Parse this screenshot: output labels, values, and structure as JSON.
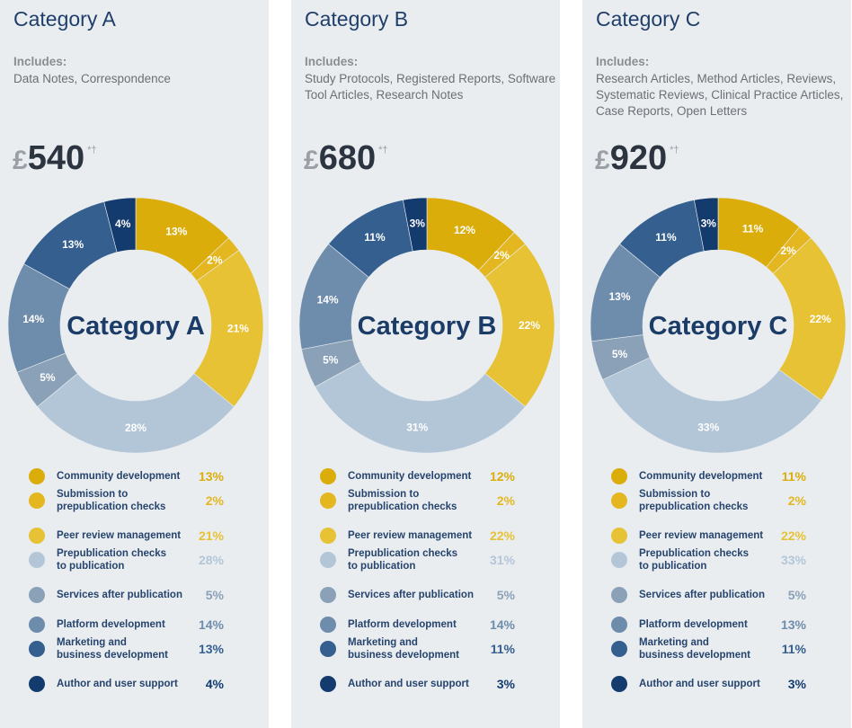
{
  "colors": {
    "community": "#dbad0b",
    "submission": "#e4b721",
    "peer": "#e6c234",
    "prepub": "#b3c6d8",
    "services": "#8aa1b8",
    "platform": "#6e8cab",
    "marketing": "#345f8f",
    "author": "#143b6e"
  },
  "legend_labels": [
    "Community development",
    "Submission to\nprepublication checks",
    "Peer review management",
    "Prepublication checks\nto publication",
    "Services after publication",
    "Platform development",
    "Marketing and\nbusiness development",
    "Author and user support"
  ],
  "panels": [
    {
      "title": "Category A",
      "includes_label": "Includes:",
      "includes_text": "Data Notes, Correspondence",
      "price_currency": "£",
      "price_amount": "540",
      "price_marks": "*†",
      "center_label": "Category A"
    },
    {
      "title": "Category B",
      "includes_label": "Includes:",
      "includes_text": "Study Protocols, Registered Reports, Software Tool Articles, Research Notes",
      "price_currency": "£",
      "price_amount": "680",
      "price_marks": "*†",
      "center_label": "Category B"
    },
    {
      "title": "Category C",
      "includes_label": "Includes:",
      "includes_text": "Research Articles, Method Articles, Reviews, Systematic Reviews, Clinical Practice Articles, Case Reports, Open Letters",
      "price_currency": "£",
      "price_amount": "920",
      "price_marks": "*†",
      "center_label": "Category C"
    }
  ],
  "chart_data": [
    {
      "type": "pie",
      "title": "Category A",
      "categories": [
        "Community development",
        "Submission to prepublication checks",
        "Peer review management",
        "Prepublication checks to publication",
        "Services after publication",
        "Platform development",
        "Marketing and business development",
        "Author and user support"
      ],
      "values": [
        13,
        2,
        21,
        28,
        5,
        14,
        13,
        4
      ],
      "unit": "%"
    },
    {
      "type": "pie",
      "title": "Category B",
      "categories": [
        "Community development",
        "Submission to prepublication checks",
        "Peer review management",
        "Prepublication checks to publication",
        "Services after publication",
        "Platform development",
        "Marketing and business development",
        "Author and user support"
      ],
      "values": [
        12,
        2,
        22,
        31,
        5,
        14,
        11,
        3
      ],
      "unit": "%"
    },
    {
      "type": "pie",
      "title": "Category C",
      "categories": [
        "Community development",
        "Submission to prepublication checks",
        "Peer review management",
        "Prepublication checks to publication",
        "Services after publication",
        "Platform development",
        "Marketing and business development",
        "Author and user support"
      ],
      "values": [
        11,
        2,
        22,
        33,
        5,
        13,
        11,
        3
      ],
      "unit": "%"
    }
  ]
}
